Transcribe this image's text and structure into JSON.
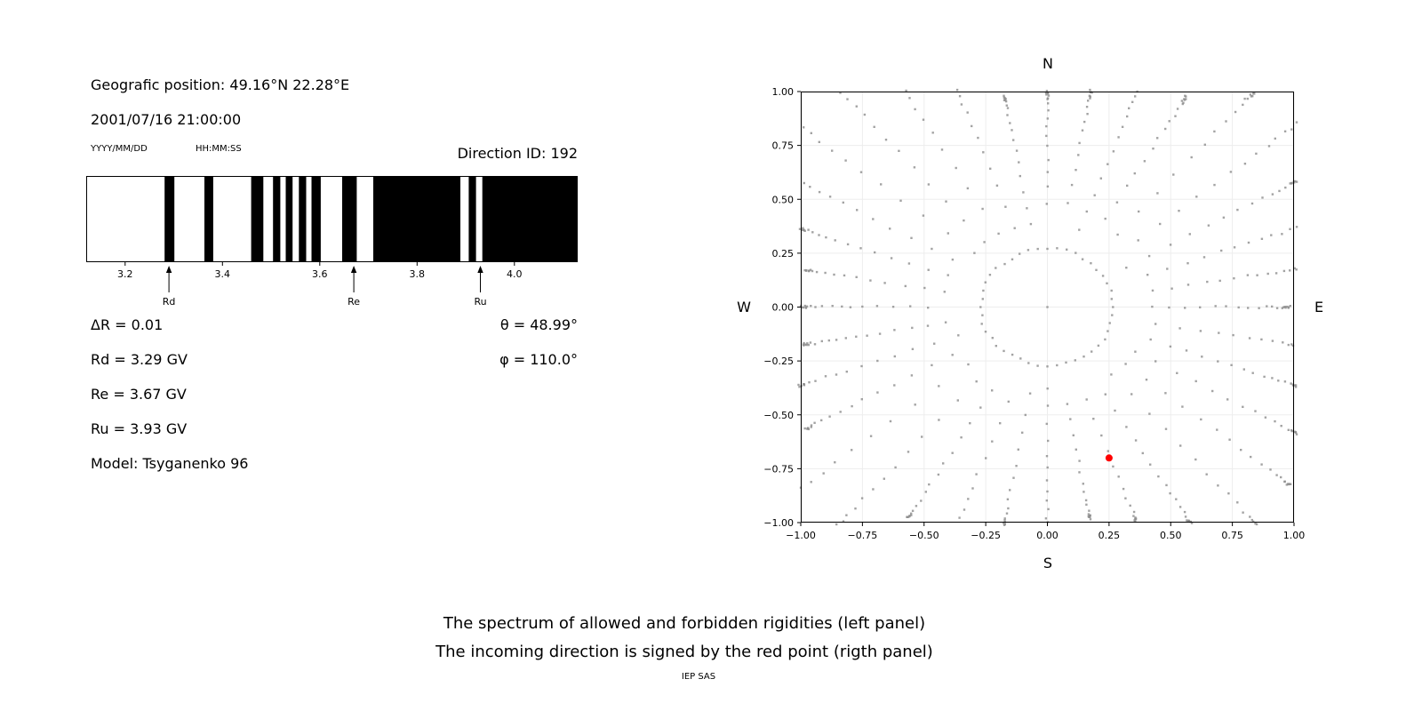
{
  "left_panel": {
    "geo_position": "Geografic position: 49.16°N 22.28°E",
    "datetime": "2001/07/16 21:00:00",
    "date_format_label": "YYYY/MM/DD",
    "time_format_label": "HH:MM:SS",
    "direction_id": "Direction ID: 192",
    "delta_r": "ΔR = 0.01",
    "rd": "Rd = 3.29 GV",
    "re": "Re = 3.67 GV",
    "ru": "Ru = 3.93 GV",
    "model": "Model: Tsyganenko 96",
    "theta": "θ = 48.99°",
    "phi": "φ = 110.0°"
  },
  "right_panel": {
    "compass": {
      "north": "N",
      "south": "S",
      "west": "W",
      "east": "E"
    }
  },
  "captions": {
    "line1": "The spectrum of allowed and forbidden rigidities (left panel)",
    "line2": "The incoming direction is signed by the red point (rigth panel)",
    "credit": "IEP SAS"
  },
  "chart_data": [
    {
      "name": "rigidity_spectrum",
      "type": "bar",
      "description": "Allowed (white) and forbidden (black) rigidity bands in GV",
      "xlim": [
        3.12,
        4.13
      ],
      "xticks": [
        3.2,
        3.4,
        3.6,
        3.8,
        4.0
      ],
      "xtick_labels": [
        "3.2",
        "3.4",
        "3.6",
        "3.8",
        "4.0"
      ],
      "forbidden_bands": [
        [
          3.281,
          3.301
        ],
        [
          3.363,
          3.381
        ],
        [
          3.459,
          3.484
        ],
        [
          3.504,
          3.519
        ],
        [
          3.53,
          3.544
        ],
        [
          3.557,
          3.572
        ],
        [
          3.583,
          3.602
        ],
        [
          3.646,
          3.676
        ],
        [
          3.71,
          3.889
        ],
        [
          3.906,
          3.921
        ],
        [
          3.934,
          4.13
        ]
      ],
      "markers": [
        {
          "label": "Rd",
          "value": 3.29
        },
        {
          "label": "Re",
          "value": 3.67
        },
        {
          "label": "Ru",
          "value": 3.93
        }
      ],
      "band_color": "#000000",
      "allowed_color": "#ffffff"
    },
    {
      "name": "incoming_direction",
      "type": "scatter",
      "description": "Radial spokes of asymptotic direction dots; red point marks incoming direction",
      "xlim": [
        -1,
        1
      ],
      "ylim": [
        -1,
        1
      ],
      "xticks": [
        -1,
        -0.75,
        -0.5,
        -0.25,
        0,
        0.25,
        0.5,
        0.75,
        1
      ],
      "yticks": [
        -1,
        -0.75,
        -0.5,
        -0.25,
        0,
        0.25,
        0.5,
        0.75,
        1
      ],
      "xtick_labels": [
        "−1.00",
        "−0.75",
        "−0.50",
        "−0.25",
        "0.00",
        "0.25",
        "0.50",
        "0.75",
        "1.00"
      ],
      "ytick_labels": [
        "−1.00",
        "−0.75",
        "−0.50",
        "−0.25",
        "0.00",
        "0.25",
        "0.50",
        "0.75",
        "1.00"
      ],
      "grid": true,
      "spokes": {
        "count": 36,
        "angle_step_deg": 10,
        "r_inner": 0.37,
        "ring_radius": 0.27,
        "ring_points": 44,
        "points_per_spoke": 14,
        "seed": 42
      },
      "red_point": {
        "x": 0.25,
        "y": -0.7
      },
      "dot_color": "#8c8c8c",
      "red_color": "#ff0000",
      "grid_color": "#ededed"
    }
  ]
}
